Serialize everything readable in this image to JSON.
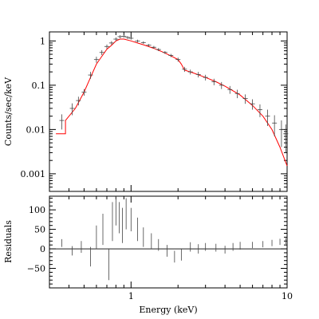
{
  "chart_data": [
    {
      "type": "line",
      "panel": "spectrum",
      "x_scale": "log",
      "y_scale": "log",
      "xlim": [
        0.3,
        10
      ],
      "ylim": [
        0.0004,
        1.6
      ],
      "ylabel": "Counts/sec/keV",
      "x_tick_labels": [
        "1",
        "10"
      ],
      "x_tick_values": [
        1,
        10
      ],
      "y_tick_labels": [
        "1",
        "0.1",
        "0.01",
        "0.001"
      ],
      "y_tick_values": [
        1,
        0.1,
        0.01,
        0.001
      ],
      "grid": false,
      "series": [
        {
          "kind": "data",
          "color": "#444444",
          "points": [
            {
              "x": 0.36,
              "y": 0.016,
              "err": 0.006
            },
            {
              "x": 0.42,
              "y": 0.03,
              "err": 0.009
            },
            {
              "x": 0.46,
              "y": 0.045,
              "err": 0.01
            },
            {
              "x": 0.5,
              "y": 0.07,
              "err": 0.012
            },
            {
              "x": 0.55,
              "y": 0.17,
              "err": 0.03
            },
            {
              "x": 0.6,
              "y": 0.38,
              "err": 0.06
            },
            {
              "x": 0.65,
              "y": 0.55,
              "err": 0.07
            },
            {
              "x": 0.7,
              "y": 0.75,
              "err": 0.08
            },
            {
              "x": 0.75,
              "y": 0.9,
              "err": 0.09
            },
            {
              "x": 0.8,
              "y": 1.1,
              "err": 0.1
            },
            {
              "x": 0.85,
              "y": 1.25,
              "err": 0.1
            },
            {
              "x": 0.9,
              "y": 1.28,
              "err": 0.1
            },
            {
              "x": 0.95,
              "y": 1.2,
              "err": 0.09
            },
            {
              "x": 1.0,
              "y": 1.15,
              "err": 0.08
            },
            {
              "x": 1.1,
              "y": 1.0,
              "err": 0.07
            },
            {
              "x": 1.2,
              "y": 0.92,
              "err": 0.06
            },
            {
              "x": 1.3,
              "y": 0.8,
              "err": 0.05
            },
            {
              "x": 1.4,
              "y": 0.72,
              "err": 0.05
            },
            {
              "x": 1.5,
              "y": 0.64,
              "err": 0.05
            },
            {
              "x": 1.65,
              "y": 0.55,
              "err": 0.04
            },
            {
              "x": 1.8,
              "y": 0.47,
              "err": 0.04
            },
            {
              "x": 2.0,
              "y": 0.38,
              "err": 0.04
            },
            {
              "x": 2.2,
              "y": 0.23,
              "err": 0.03
            },
            {
              "x": 2.4,
              "y": 0.2,
              "err": 0.025
            },
            {
              "x": 2.7,
              "y": 0.175,
              "err": 0.025
            },
            {
              "x": 3.0,
              "y": 0.15,
              "err": 0.022
            },
            {
              "x": 3.4,
              "y": 0.12,
              "err": 0.02
            },
            {
              "x": 3.8,
              "y": 0.1,
              "err": 0.018
            },
            {
              "x": 4.3,
              "y": 0.08,
              "err": 0.016
            },
            {
              "x": 4.8,
              "y": 0.065,
              "err": 0.014
            },
            {
              "x": 5.4,
              "y": 0.05,
              "err": 0.012
            },
            {
              "x": 6.0,
              "y": 0.038,
              "err": 0.01
            },
            {
              "x": 6.7,
              "y": 0.028,
              "err": 0.009
            },
            {
              "x": 7.5,
              "y": 0.02,
              "err": 0.008
            },
            {
              "x": 8.3,
              "y": 0.014,
              "err": 0.007
            },
            {
              "x": 9.2,
              "y": 0.01,
              "err": 0.006
            },
            {
              "x": 9.8,
              "y": 0.008,
              "err": 0.005
            }
          ]
        },
        {
          "kind": "model",
          "color": "#ff0000",
          "points": [
            {
              "x": 0.33,
              "y": 0.008
            },
            {
              "x": 0.38,
              "y": 0.008
            },
            {
              "x": 0.38,
              "y": 0.016
            },
            {
              "x": 0.44,
              "y": 0.03
            },
            {
              "x": 0.5,
              "y": 0.07
            },
            {
              "x": 0.55,
              "y": 0.15
            },
            {
              "x": 0.6,
              "y": 0.3
            },
            {
              "x": 0.65,
              "y": 0.45
            },
            {
              "x": 0.7,
              "y": 0.65
            },
            {
              "x": 0.75,
              "y": 0.8
            },
            {
              "x": 0.8,
              "y": 1.0
            },
            {
              "x": 0.85,
              "y": 1.1
            },
            {
              "x": 0.9,
              "y": 1.1
            },
            {
              "x": 1.0,
              "y": 1.0
            },
            {
              "x": 1.1,
              "y": 0.9
            },
            {
              "x": 1.2,
              "y": 0.82
            },
            {
              "x": 1.4,
              "y": 0.68
            },
            {
              "x": 1.6,
              "y": 0.56
            },
            {
              "x": 1.8,
              "y": 0.46
            },
            {
              "x": 2.0,
              "y": 0.38
            },
            {
              "x": 2.1,
              "y": 0.3
            },
            {
              "x": 2.2,
              "y": 0.22
            },
            {
              "x": 2.5,
              "y": 0.19
            },
            {
              "x": 3.0,
              "y": 0.15
            },
            {
              "x": 3.5,
              "y": 0.12
            },
            {
              "x": 4.0,
              "y": 0.095
            },
            {
              "x": 4.5,
              "y": 0.075
            },
            {
              "x": 5.0,
              "y": 0.06
            },
            {
              "x": 6.0,
              "y": 0.035
            },
            {
              "x": 7.0,
              "y": 0.02
            },
            {
              "x": 8.0,
              "y": 0.01
            },
            {
              "x": 9.0,
              "y": 0.004
            },
            {
              "x": 10.0,
              "y": 0.0015
            }
          ]
        }
      ]
    },
    {
      "type": "scatter",
      "panel": "residuals",
      "x_scale": "log",
      "y_scale": "linear",
      "xlim": [
        0.3,
        10
      ],
      "ylim": [
        -100,
        135
      ],
      "xlabel": "Energy (keV)",
      "ylabel": "Residuals",
      "x_tick_labels": [
        "1",
        "10"
      ],
      "x_tick_values": [
        1,
        10
      ],
      "y_tick_labels": [
        "100",
        "50",
        "0",
        "−50"
      ],
      "y_tick_values": [
        100,
        50,
        0,
        -50
      ],
      "zero_line": true,
      "grid": false,
      "series": [
        {
          "kind": "data",
          "color": "#444444",
          "points": [
            {
              "x": 0.36,
              "y": 15,
              "err": 10
            },
            {
              "x": 0.42,
              "y": -5,
              "err": 12
            },
            {
              "x": 0.48,
              "y": 5,
              "err": 15
            },
            {
              "x": 0.55,
              "y": -20,
              "err": 25
            },
            {
              "x": 0.6,
              "y": 30,
              "err": 30
            },
            {
              "x": 0.66,
              "y": 50,
              "err": 40
            },
            {
              "x": 0.72,
              "y": -40,
              "err": 40
            },
            {
              "x": 0.76,
              "y": 70,
              "err": 50
            },
            {
              "x": 0.8,
              "y": 100,
              "err": 40
            },
            {
              "x": 0.84,
              "y": 80,
              "err": 40
            },
            {
              "x": 0.88,
              "y": 60,
              "err": 45
            },
            {
              "x": 0.93,
              "y": 90,
              "err": 40
            },
            {
              "x": 1.0,
              "y": 75,
              "err": 30
            },
            {
              "x": 1.1,
              "y": 50,
              "err": 30
            },
            {
              "x": 1.2,
              "y": 30,
              "err": 25
            },
            {
              "x": 1.35,
              "y": 20,
              "err": 20
            },
            {
              "x": 1.5,
              "y": 10,
              "err": 15
            },
            {
              "x": 1.7,
              "y": -5,
              "err": 15
            },
            {
              "x": 1.9,
              "y": -20,
              "err": 15
            },
            {
              "x": 2.1,
              "y": -15,
              "err": 15
            },
            {
              "x": 2.4,
              "y": 5,
              "err": 12
            },
            {
              "x": 2.7,
              "y": 0,
              "err": 12
            },
            {
              "x": 3.0,
              "y": 5,
              "err": 10
            },
            {
              "x": 3.5,
              "y": 3,
              "err": 10
            },
            {
              "x": 4.0,
              "y": -2,
              "err": 10
            },
            {
              "x": 4.5,
              "y": 5,
              "err": 10
            },
            {
              "x": 5.0,
              "y": 8,
              "err": 10
            },
            {
              "x": 6.0,
              "y": 10,
              "err": 8
            },
            {
              "x": 7.0,
              "y": 12,
              "err": 8
            },
            {
              "x": 8.0,
              "y": 15,
              "err": 8
            },
            {
              "x": 9.0,
              "y": 18,
              "err": 8
            },
            {
              "x": 9.8,
              "y": 20,
              "err": 8
            }
          ]
        }
      ]
    }
  ]
}
